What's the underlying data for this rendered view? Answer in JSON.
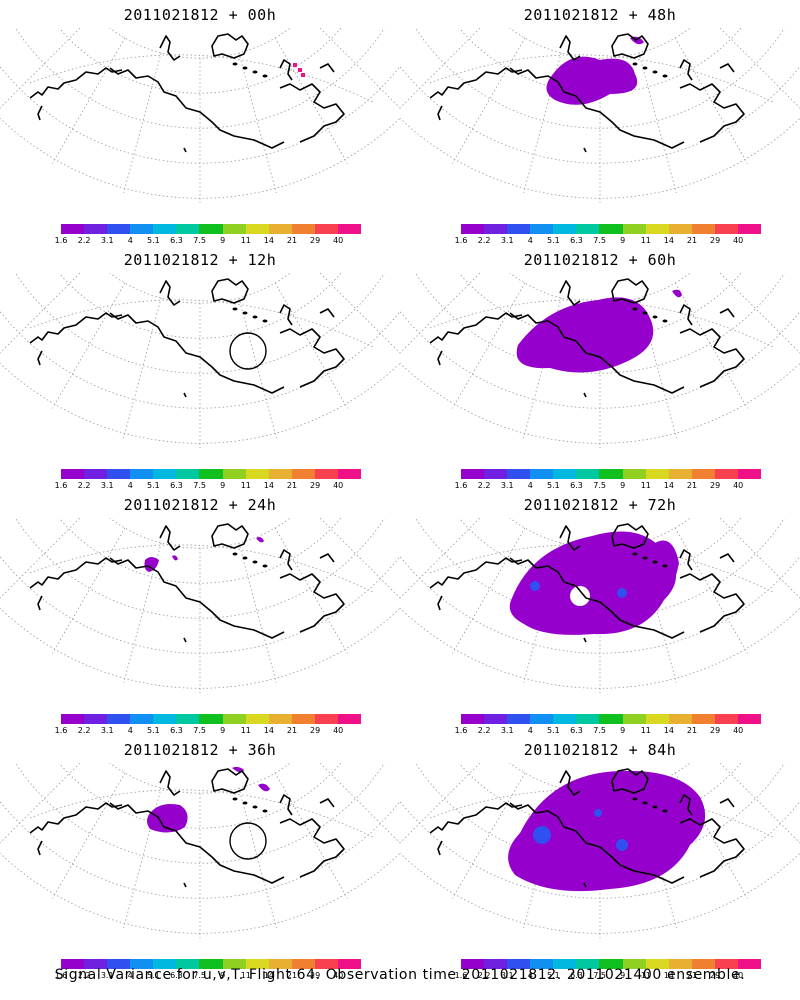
{
  "panels": [
    {
      "title": "2011021812 + 00h",
      "variance_level": 0
    },
    {
      "title": "2011021812 + 48h",
      "variance_level": 2
    },
    {
      "title": "2011021812 + 12h",
      "variance_level": 0
    },
    {
      "title": "2011021812 + 60h",
      "variance_level": 3
    },
    {
      "title": "2011021812 + 24h",
      "variance_level": 1
    },
    {
      "title": "2011021812 + 72h",
      "variance_level": 4
    },
    {
      "title": "2011021812 + 36h",
      "variance_level": 1
    },
    {
      "title": "2011021812 + 84h",
      "variance_level": 5
    }
  ],
  "colorbar": {
    "labels": [
      "1.6",
      "2.2",
      "3.1",
      "4",
      "5.1",
      "6.3",
      "7.5",
      "9",
      "11",
      "14",
      "21",
      "29",
      "40"
    ],
    "colors": [
      "#9600cc",
      "#7020e0",
      "#3050f0",
      "#1090f0",
      "#00b8e0",
      "#00c8a0",
      "#10c020",
      "#90d020",
      "#d8d820",
      "#e8b030",
      "#f08030",
      "#f84050",
      "#f01088"
    ]
  },
  "footer": "Signal Variance for u,v,T. Flight 64. Observation time 2011021812. 2011021400 ensemble."
}
